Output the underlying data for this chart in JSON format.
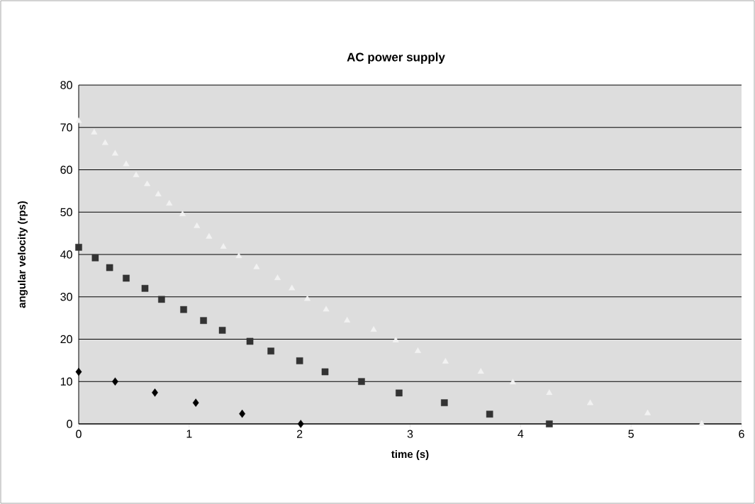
{
  "chart_data": {
    "type": "scatter",
    "title": "AC power supply",
    "xlabel": "time (s)",
    "ylabel": "angular velocity (rps)",
    "xlim": [
      0,
      6
    ],
    "xticks": [
      0,
      1,
      2,
      3,
      4,
      5,
      6
    ],
    "ylim": [
      0,
      80
    ],
    "yticks": [
      0,
      10,
      20,
      30,
      40,
      50,
      60,
      70,
      80
    ],
    "grid": "y",
    "series": [
      {
        "color": "#333333",
        "marker": "square",
        "x": [
          0,
          0.15,
          0.28,
          0.43,
          0.6,
          0.75,
          0.95,
          1.13,
          1.3,
          1.55,
          1.74,
          2.0,
          2.23,
          2.56,
          2.9,
          3.31,
          3.72,
          4.26
        ],
        "values": [
          41.7,
          39.2,
          36.9,
          34.4,
          32,
          29.4,
          27,
          24.4,
          22.1,
          19.5,
          17.2,
          14.9,
          12.3,
          10,
          7.3,
          5,
          2.3,
          0
        ]
      },
      {
        "color": "#000000",
        "marker": "diamond",
        "x": [
          0,
          0.33,
          0.69,
          1.06,
          1.48,
          2.01
        ],
        "values": [
          12.3,
          10,
          7.4,
          5,
          2.4,
          0
        ]
      },
      {
        "color": "#f2f2f2",
        "marker": "triangle",
        "x": [
          0,
          0.14,
          0.24,
          0.33,
          0.43,
          0.52,
          0.62,
          0.72,
          0.82,
          0.94,
          1.07,
          1.18,
          1.31,
          1.45,
          1.61,
          1.8,
          1.93,
          2.07,
          2.24,
          2.43,
          2.67,
          2.87,
          3.07,
          3.32,
          3.64,
          3.93,
          4.26,
          4.63,
          5.15,
          5.64
        ],
        "values": [
          71.5,
          68.8,
          66.3,
          63.8,
          61.3,
          58.7,
          56.6,
          54.2,
          52,
          49.5,
          46.7,
          44.2,
          41.8,
          39.6,
          37,
          34.4,
          32,
          29.5,
          27,
          24.4,
          22.2,
          19.7,
          17.2,
          14.7,
          12.3,
          9.8,
          7.3,
          4.9,
          2.5,
          0
        ]
      }
    ]
  }
}
